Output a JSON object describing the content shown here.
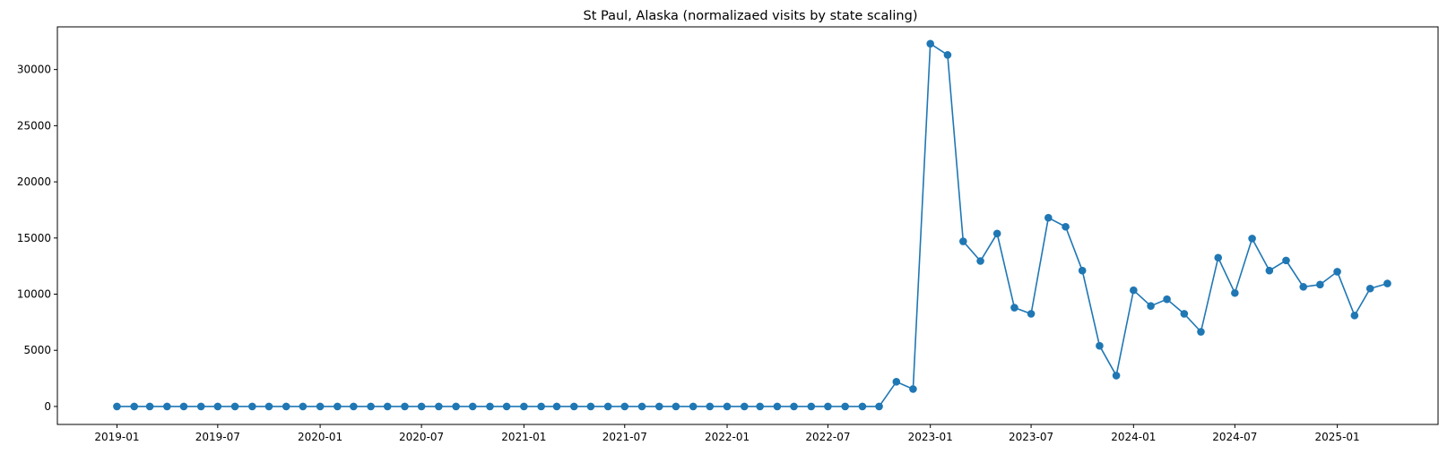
{
  "chart_data": {
    "type": "line",
    "title": "St Paul, Alaska (normalizaed visits by state scaling)",
    "xlabel": "",
    "ylabel": "",
    "x_range": [
      "2018-09-16",
      "2025-07-01"
    ],
    "ylim": [
      -1600,
      33800
    ],
    "y_ticks": [
      0,
      5000,
      10000,
      15000,
      20000,
      25000,
      30000
    ],
    "x_ticks": [
      "2019-01",
      "2019-07",
      "2020-01",
      "2020-07",
      "2021-01",
      "2021-07",
      "2022-01",
      "2022-07",
      "2023-01",
      "2023-07",
      "2024-01",
      "2024-07",
      "2025-01"
    ],
    "grid": false,
    "line_color": "#1f77b4",
    "marker": "circle",
    "series": [
      {
        "x": [
          "2019-01",
          "2019-02",
          "2019-03",
          "2019-04",
          "2019-05",
          "2019-06",
          "2019-07",
          "2019-08",
          "2019-09",
          "2019-10",
          "2019-11",
          "2019-12",
          "2020-01",
          "2020-02",
          "2020-03",
          "2020-04",
          "2020-05",
          "2020-06",
          "2020-07",
          "2020-08",
          "2020-09",
          "2020-10",
          "2020-11",
          "2020-12",
          "2021-01",
          "2021-02",
          "2021-03",
          "2021-04",
          "2021-05",
          "2021-06",
          "2021-07",
          "2021-08",
          "2021-09",
          "2021-10",
          "2021-11",
          "2021-12",
          "2022-01",
          "2022-02",
          "2022-03",
          "2022-04",
          "2022-05",
          "2022-06",
          "2022-07",
          "2022-08",
          "2022-09",
          "2022-10",
          "2022-11",
          "2022-12",
          "2023-01",
          "2023-02",
          "2023-03",
          "2023-04",
          "2023-05",
          "2023-06",
          "2023-07",
          "2023-08",
          "2023-09",
          "2023-10",
          "2023-11",
          "2023-12",
          "2024-01",
          "2024-02",
          "2024-03",
          "2024-04",
          "2024-05",
          "2024-06",
          "2024-07",
          "2024-08",
          "2024-09",
          "2024-10",
          "2024-11",
          "2024-12",
          "2025-01",
          "2025-02",
          "2025-03",
          "2025-04"
        ],
        "values": [
          0,
          0,
          0,
          0,
          0,
          0,
          0,
          0,
          0,
          0,
          0,
          0,
          0,
          0,
          0,
          0,
          0,
          0,
          0,
          0,
          0,
          0,
          0,
          0,
          0,
          0,
          0,
          0,
          0,
          0,
          0,
          0,
          0,
          0,
          0,
          0,
          0,
          0,
          0,
          0,
          0,
          0,
          0,
          0,
          0,
          0,
          2200,
          1550,
          32300,
          31300,
          14700,
          12950,
          15400,
          8800,
          8250,
          16800,
          16000,
          12100,
          5400,
          2750,
          10350,
          8950,
          9550,
          8250,
          6650,
          13250,
          10100,
          14950,
          12100,
          13000,
          10650,
          10850,
          12000,
          8100,
          10500,
          10950
        ]
      }
    ]
  }
}
